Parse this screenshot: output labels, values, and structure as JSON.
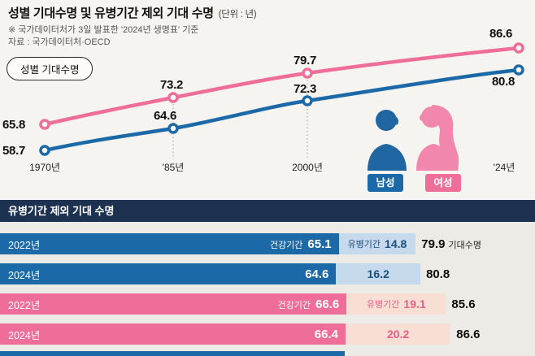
{
  "title": {
    "main": "성별 기대수명 및 유병기간 제외 기대 수명",
    "unit": "(단위 : 년)"
  },
  "notes": {
    "line1": "※ 국가데이터처가 3일 발표한 '2024년 생명표' 기준",
    "line2": "자료 : 국가데이터처·OECD"
  },
  "badge": {
    "gender": "성별 기대수명"
  },
  "legend": {
    "male": "남성",
    "female": "여성"
  },
  "bar_header": "유병기간 제외 기대 수명",
  "colors": {
    "female": "#ee6d99",
    "male": "#1c69a8",
    "male_light": "#c7d9ec",
    "female_light": "#f9ded3",
    "header_navy": "#1d3250",
    "background": "#f5f4f0"
  },
  "chart_data": [
    {
      "type": "line",
      "title": "성별 기대수명",
      "x": [
        "1970년",
        "'85년",
        "2000년",
        "'24년"
      ],
      "series": [
        {
          "name": "여성",
          "color": "#ee6d99",
          "values": [
            65.8,
            73.2,
            79.7,
            86.6
          ]
        },
        {
          "name": "남성",
          "color": "#1c69a8",
          "values": [
            58.7,
            64.6,
            72.3,
            80.8
          ]
        }
      ],
      "ylim": [
        55,
        90
      ],
      "grid": false,
      "legend_position": "bottom-right"
    },
    {
      "type": "bar",
      "title": "유병기간 제외 기대 수명",
      "rows": [
        {
          "year": "2022년",
          "group": "남성",
          "healthy_label": "건강기간",
          "healthy": 65.1,
          "sick_label": "유병기간",
          "sick": 14.8,
          "total": 79.9,
          "total_label": "기대수명"
        },
        {
          "year": "2024년",
          "group": "남성",
          "healthy_label": "",
          "healthy": 64.6,
          "sick_label": "",
          "sick": 16.2,
          "total": 80.8,
          "total_label": ""
        },
        {
          "year": "2022년",
          "group": "여성",
          "healthy_label": "건강기간",
          "healthy": 66.6,
          "sick_label": "유병기간",
          "sick": 19.1,
          "total": 85.6,
          "total_label": ""
        },
        {
          "year": "2024년",
          "group": "여성",
          "healthy_label": "",
          "healthy": 66.4,
          "sick_label": "",
          "sick": 20.2,
          "total": 86.6,
          "total_label": ""
        }
      ]
    }
  ]
}
